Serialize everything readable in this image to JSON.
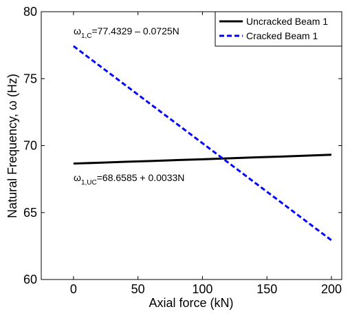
{
  "chart_data": {
    "type": "line",
    "x_label": "Axial force (kN)",
    "y_label": "Natural Frequency, ω (Hz)",
    "x": [
      0,
      20,
      40,
      60,
      80,
      100,
      120,
      140,
      160,
      180,
      200
    ],
    "series": [
      {
        "name": "Uncracked Beam 1",
        "color": "#000000",
        "style": "solid",
        "values": [
          68.66,
          68.72,
          68.79,
          68.85,
          68.92,
          68.98,
          69.05,
          69.12,
          69.18,
          69.25,
          69.32
        ]
      },
      {
        "name": "Cracked Beam 1",
        "color": "#0000ff",
        "style": "dashed",
        "values": [
          77.43,
          75.98,
          74.53,
          73.08,
          71.63,
          70.18,
          68.73,
          67.28,
          65.83,
          64.38,
          62.93
        ]
      }
    ],
    "annotations": [
      {
        "symbol": "ω",
        "subscript": "1,C",
        "text": "=77.4329 – 0.0725N"
      },
      {
        "symbol": "ω",
        "subscript": "1,UC",
        "text": "=68.6585 + 0.0033N"
      }
    ],
    "xlim": [
      -25,
      208
    ],
    "xticks": [
      0,
      50,
      100,
      150,
      200
    ],
    "ylim": [
      60,
      80
    ],
    "yticks": [
      60,
      65,
      70,
      75,
      80
    ],
    "legend": "upper right"
  }
}
